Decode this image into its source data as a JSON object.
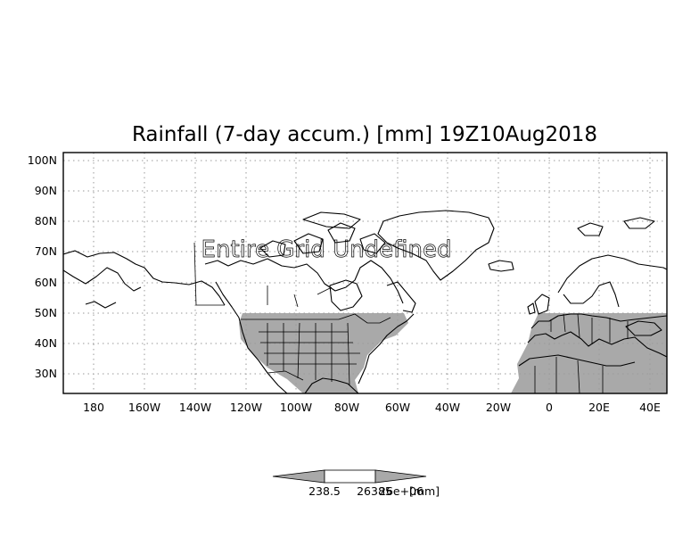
{
  "map": {
    "title": "Rainfall (7-day accum.) [mm] 19Z10Aug2018",
    "annotation": "Entire Grid Undefined",
    "lat_labels": [
      "100N",
      "90N",
      "80N",
      "70N",
      "60N",
      "50N",
      "40N",
      "30N"
    ],
    "lon_labels": [
      "180",
      "160W",
      "140W",
      "120W",
      "100W",
      "80W",
      "60W",
      "40W",
      "20W",
      "0",
      "20E",
      "40E"
    ],
    "extent": {
      "lon_min": -192,
      "lon_max": 47,
      "lat_min": 23,
      "lat_max": 103
    },
    "undefined_region": {
      "lat_max": 50,
      "color": "#a9a9a9"
    },
    "colorbar": {
      "label_left": "238.5",
      "label_middle": "26385",
      "label_right": "26e+06",
      "units": "[mm]"
    }
  }
}
